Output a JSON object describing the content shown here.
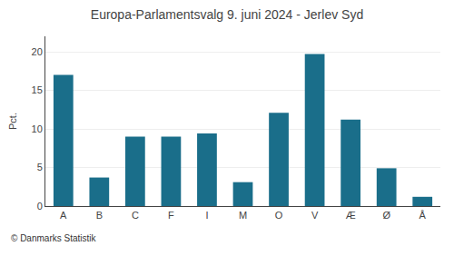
{
  "chart_data": {
    "type": "bar",
    "title": "Europa-Parlamentsvalg 9. juni 2024 - Jerlev Syd",
    "categories": [
      "A",
      "B",
      "C",
      "F",
      "I",
      "M",
      "O",
      "V",
      "Æ",
      "Ø",
      "Å"
    ],
    "values": [
      17.0,
      3.7,
      9.0,
      9.0,
      9.4,
      3.1,
      12.1,
      19.7,
      11.2,
      4.9,
      1.2
    ],
    "color": "#1a6e8a",
    "ylabel": "Pct.",
    "footer": "© Danmarks Statistik",
    "ylim": [
      0,
      22
    ],
    "yticks": [
      0,
      5,
      10,
      15,
      20
    ],
    "grid": true
  }
}
